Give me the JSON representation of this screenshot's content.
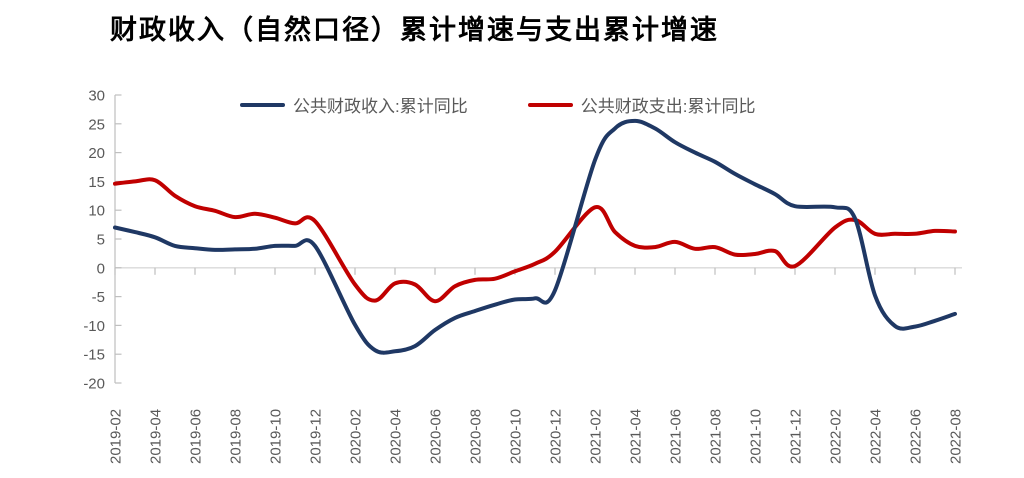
{
  "title": "财政收入（自然口径）累计增速与支出累计增速",
  "legend": [
    {
      "label": "公共财政收入:累计同比",
      "color": "#1f3864"
    },
    {
      "label": "公共财政支出:累计同比",
      "color": "#c00000"
    }
  ],
  "colors": {
    "revenue_line": "#1f3864",
    "expenditure_line": "#c00000",
    "axis": "#bfbfbf",
    "zero_line": "#d9d9d9",
    "tick_label": "#595959",
    "title_text": "#000000",
    "background": "#ffffff"
  },
  "chart_data": {
    "type": "line",
    "title": "财政收入（自然口径）累计增速与支出累计增速",
    "xlabel": "",
    "ylabel": "",
    "ylim": [
      -20,
      30
    ],
    "y_ticks": [
      30,
      25,
      20,
      15,
      10,
      5,
      0,
      -5,
      -10,
      -15,
      -20
    ],
    "grid": "zero-line-only",
    "legend_position": "top-center",
    "x_unit": "months-since-2019-02",
    "x": [
      0,
      1,
      2,
      3,
      4,
      5,
      6,
      7,
      8,
      9,
      10,
      12,
      13,
      14,
      15,
      16,
      17,
      18,
      19,
      20,
      21,
      22,
      24,
      25,
      26,
      27,
      28,
      29,
      30,
      31,
      32,
      33,
      34,
      36,
      37,
      38,
      39,
      40,
      41,
      42
    ],
    "point_labels": [
      "2019-02",
      "2019-03",
      "2019-04",
      "2019-05",
      "2019-06",
      "2019-07",
      "2019-08",
      "2019-09",
      "2019-10",
      "2019-11",
      "2019-12",
      "2020-02",
      "2020-03",
      "2020-04",
      "2020-05",
      "2020-06",
      "2020-07",
      "2020-08",
      "2020-09",
      "2020-10",
      "2020-11",
      "2020-12",
      "2021-02",
      "2021-03",
      "2021-04",
      "2021-05",
      "2021-06",
      "2021-07",
      "2021-08",
      "2021-09",
      "2021-10",
      "2021-11",
      "2021-12",
      "2022-02",
      "2022-03",
      "2022-04",
      "2022-05",
      "2022-06",
      "2022-07",
      "2022-08"
    ],
    "series": [
      {
        "name": "公共财政收入:累计同比",
        "color": "#1f3864",
        "values": [
          7.0,
          6.2,
          5.3,
          3.8,
          3.4,
          3.1,
          3.2,
          3.3,
          3.8,
          3.8,
          3.8,
          -9.9,
          -14.3,
          -14.5,
          -13.6,
          -10.8,
          -8.7,
          -7.5,
          -6.4,
          -5.5,
          -5.3,
          -3.9,
          18.7,
          24.2,
          25.5,
          24.2,
          21.8,
          20.0,
          18.4,
          16.3,
          14.5,
          12.8,
          10.7,
          10.5,
          8.6,
          -4.8,
          -10.1,
          -10.2,
          -9.2,
          -8.0
        ]
      },
      {
        "name": "公共财政支出:累计同比",
        "color": "#c00000",
        "values": [
          14.6,
          15.0,
          15.2,
          12.5,
          10.7,
          9.9,
          8.8,
          9.4,
          8.7,
          7.7,
          8.1,
          -2.9,
          -5.7,
          -2.7,
          -2.9,
          -5.8,
          -3.2,
          -2.1,
          -1.9,
          -0.6,
          0.7,
          2.8,
          10.5,
          6.2,
          3.8,
          3.6,
          4.5,
          3.3,
          3.6,
          2.3,
          2.4,
          2.9,
          0.3,
          7.0,
          8.3,
          5.9,
          5.9,
          5.9,
          6.4,
          6.3
        ]
      }
    ],
    "x_tick_months": [
      0,
      2,
      4,
      6,
      8,
      10,
      12,
      14,
      16,
      18,
      20,
      22,
      24,
      26,
      28,
      30,
      32,
      34,
      36,
      38,
      40,
      42
    ],
    "x_tick_labels": [
      "2019-02",
      "2019-04",
      "2019-06",
      "2019-08",
      "2019-10",
      "2019-12",
      "2020-02",
      "2020-04",
      "2020-06",
      "2020-08",
      "2020-10",
      "2020-12",
      "2021-02",
      "2021-04",
      "2021-06",
      "2021-08",
      "2021-10",
      "2021-12",
      "2022-02",
      "2022-04",
      "2022-06",
      "2022-08"
    ]
  }
}
